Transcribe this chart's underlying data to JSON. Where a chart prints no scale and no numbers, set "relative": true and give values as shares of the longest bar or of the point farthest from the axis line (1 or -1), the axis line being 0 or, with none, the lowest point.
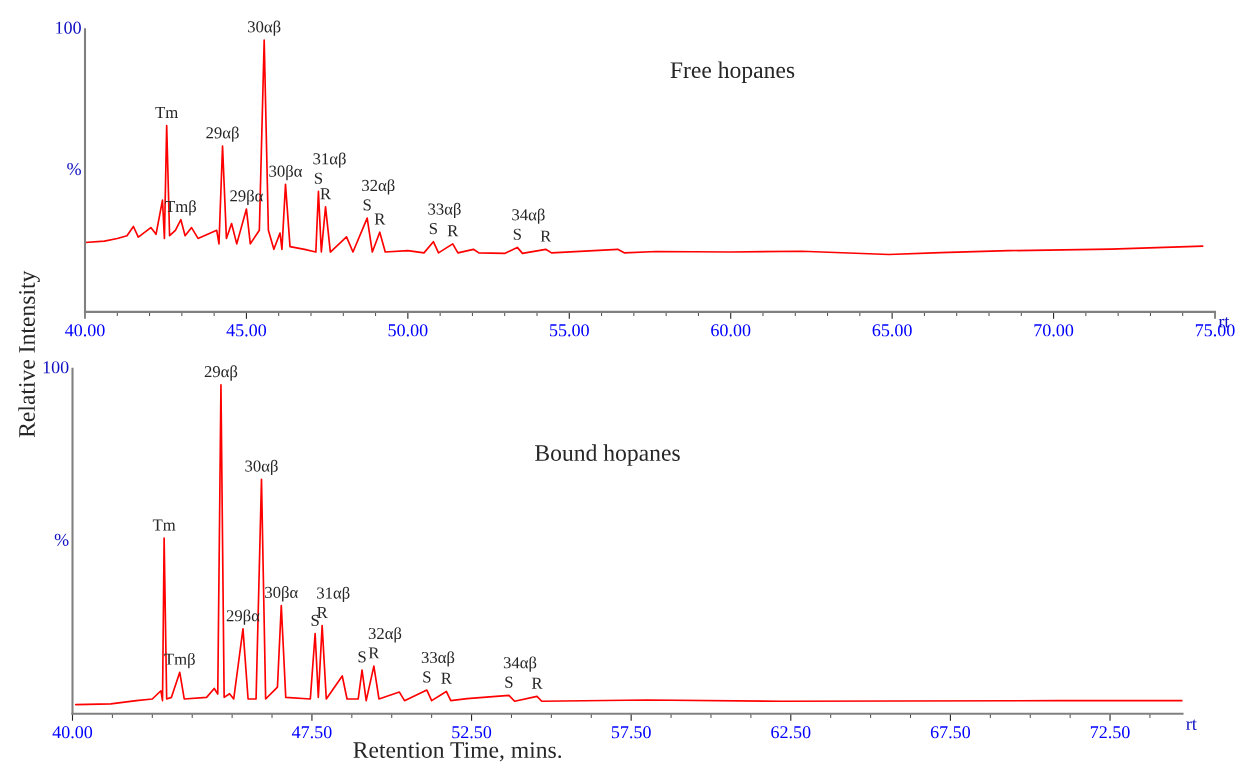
{
  "chart_data": [
    {
      "type": "line",
      "title": "Free hopanes",
      "ylabel": "Relative Intensity",
      "relative": true,
      "x": [
        40.0,
        40.6,
        41.0,
        41.3,
        41.5,
        41.65,
        42.04,
        42.2,
        42.4,
        42.46,
        42.53,
        42.62,
        42.8,
        42.97,
        43.1,
        43.3,
        43.5,
        44.08,
        44.15,
        44.26,
        44.38,
        44.54,
        44.7,
        45.0,
        45.12,
        45.4,
        45.55,
        45.68,
        45.85,
        46.04,
        46.1,
        46.21,
        46.35,
        46.8,
        47.15,
        47.23,
        47.32,
        47.45,
        47.6,
        48.1,
        48.3,
        48.74,
        48.9,
        49.13,
        49.3,
        50.0,
        50.5,
        50.79,
        50.95,
        51.39,
        51.55,
        52.03,
        52.2,
        53.0,
        53.39,
        53.55,
        54.27,
        54.45,
        56.5,
        56.7,
        57.7,
        60.0,
        62.2,
        64.9,
        66.5,
        68.6,
        71.77,
        74.62
      ],
      "series": [
        {
          "color": "#ff0000",
          "values": [
            0.255,
            0.26,
            0.27,
            0.28,
            0.314,
            0.275,
            0.31,
            0.285,
            0.411,
            0.27,
            0.685,
            0.28,
            0.3,
            0.339,
            0.28,
            0.31,
            0.27,
            0.3,
            0.25,
            0.61,
            0.27,
            0.325,
            0.25,
            0.378,
            0.25,
            0.3,
            1.0,
            0.3,
            0.23,
            0.29,
            0.23,
            0.469,
            0.24,
            0.23,
            0.22,
            0.443,
            0.22,
            0.386,
            0.22,
            0.276,
            0.22,
            0.345,
            0.22,
            0.293,
            0.22,
            0.225,
            0.217,
            0.258,
            0.217,
            0.25,
            0.217,
            0.23,
            0.217,
            0.215,
            0.237,
            0.215,
            0.23,
            0.217,
            0.23,
            0.217,
            0.222,
            0.22,
            0.223,
            0.211,
            0.218,
            0.225,
            0.231,
            0.242
          ]
        }
      ],
      "xlim": [
        40,
        75
      ],
      "xticks": [
        {
          "value": 40,
          "label": "40.00"
        },
        {
          "value": 45,
          "label": "45.00"
        },
        {
          "value": 50,
          "label": "50.00"
        },
        {
          "value": 55,
          "label": "55.00"
        },
        {
          "value": 60,
          "label": "60.00"
        },
        {
          "value": 65,
          "label": "65.00"
        },
        {
          "value": 70,
          "label": "70.00"
        },
        {
          "value": 75,
          "label": "75.00"
        }
      ],
      "annotations": [
        "100",
        "%",
        "rt",
        {
          "text": "Tm",
          "x": 42.53,
          "y": 0.685
        },
        {
          "text": "Tmβ",
          "x": 42.97,
          "y": 0.339
        },
        {
          "text": "29αβ",
          "x": 44.26,
          "y": 0.61
        },
        {
          "text": "29βα",
          "x": 45.0,
          "y": 0.378
        },
        {
          "text": "30αβ",
          "x": 45.55,
          "y": 1.0
        },
        {
          "text": "30βα",
          "x": 46.21,
          "y": 0.469
        },
        {
          "text": "S",
          "x": 47.23,
          "y": 0.443
        },
        {
          "text": "R",
          "x": 47.45,
          "y": 0.386
        },
        {
          "text": "31αβ",
          "x": 47.23,
          "y": 0.443
        },
        {
          "text": "S",
          "x": 48.74,
          "y": 0.345
        },
        {
          "text": "R",
          "x": 49.13,
          "y": 0.293
        },
        {
          "text": "32αβ",
          "x": 48.74,
          "y": 0.345
        },
        {
          "text": "S",
          "x": 50.79,
          "y": 0.258
        },
        {
          "text": "R",
          "x": 51.39,
          "y": 0.25
        },
        {
          "text": "33αβ",
          "x": 50.79,
          "y": 0.258
        },
        {
          "text": "S",
          "x": 53.39,
          "y": 0.237
        },
        {
          "text": "R",
          "x": 54.27,
          "y": 0.23
        },
        {
          "text": "34αβ",
          "x": 53.39,
          "y": 0.237
        }
      ]
    },
    {
      "type": "line",
      "title": "Bound hopanes",
      "xlabel": "Retention Time, mins.",
      "relative": true,
      "x": [
        40.1,
        41.2,
        42.0,
        42.5,
        42.77,
        42.82,
        42.87,
        42.95,
        43.1,
        43.36,
        43.5,
        44.2,
        44.44,
        44.55,
        44.65,
        44.75,
        44.92,
        45.05,
        45.34,
        45.5,
        45.75,
        45.92,
        46.05,
        46.42,
        46.54,
        46.68,
        47.45,
        47.6,
        47.7,
        47.82,
        47.95,
        48.45,
        48.6,
        48.95,
        49.07,
        49.2,
        49.44,
        49.6,
        50.24,
        50.4,
        51.1,
        51.25,
        51.71,
        51.85,
        52.36,
        53.67,
        53.85,
        54.55,
        54.7,
        58.0,
        62.2,
        70.94,
        74.77
      ],
      "series": [
        {
          "color": "#ff0000",
          "values": [
            0.028,
            0.03,
            0.04,
            0.045,
            0.07,
            0.04,
            0.534,
            0.045,
            0.05,
            0.126,
            0.045,
            0.05,
            0.077,
            0.06,
            1.0,
            0.05,
            0.061,
            0.045,
            0.258,
            0.045,
            0.045,
            0.713,
            0.045,
            0.081,
            0.329,
            0.05,
            0.045,
            0.244,
            0.05,
            0.268,
            0.045,
            0.115,
            0.045,
            0.045,
            0.133,
            0.04,
            0.145,
            0.045,
            0.066,
            0.04,
            0.072,
            0.04,
            0.068,
            0.04,
            0.046,
            0.056,
            0.038,
            0.053,
            0.038,
            0.042,
            0.038,
            0.04,
            0.04
          ]
        }
      ],
      "xlim": [
        40,
        74.77
      ],
      "xticks": [
        {
          "value": 40,
          "label": "40.00"
        },
        {
          "value": 47.5,
          "label": "47.50"
        },
        {
          "value": 52.5,
          "label": "52.50"
        },
        {
          "value": 57.5,
          "label": "57.50"
        },
        {
          "value": 62.5,
          "label": "62.50"
        },
        {
          "value": 67.5,
          "label": "67.50"
        },
        {
          "value": 72.5,
          "label": "72.50"
        }
      ],
      "annotations": [
        "100",
        "%",
        "rt",
        {
          "text": "Tm",
          "x": 42.87,
          "y": 0.534
        },
        {
          "text": "Tmβ",
          "x": 43.36,
          "y": 0.126
        },
        {
          "text": "29αβ",
          "x": 44.65,
          "y": 1.0
        },
        {
          "text": "29βα",
          "x": 45.34,
          "y": 0.258
        },
        {
          "text": "30αβ",
          "x": 45.92,
          "y": 0.713
        },
        {
          "text": "30βα",
          "x": 46.54,
          "y": 0.329
        },
        {
          "text": "S",
          "x": 47.6,
          "y": 0.244
        },
        {
          "text": "R",
          "x": 47.82,
          "y": 0.268
        },
        {
          "text": "31αβ",
          "x": 47.82,
          "y": 0.268
        },
        {
          "text": "S",
          "x": 49.07,
          "y": 0.133
        },
        {
          "text": "R",
          "x": 49.44,
          "y": 0.145
        },
        {
          "text": "32αβ",
          "x": 49.44,
          "y": 0.145
        },
        {
          "text": "S",
          "x": 51.1,
          "y": 0.072
        },
        {
          "text": "R",
          "x": 51.71,
          "y": 0.068
        },
        {
          "text": "33αβ",
          "x": 51.1,
          "y": 0.072
        },
        {
          "text": "S",
          "x": 53.67,
          "y": 0.056
        },
        {
          "text": "R",
          "x": 54.55,
          "y": 0.053
        },
        {
          "text": "34αβ",
          "x": 53.67,
          "y": 0.056
        }
      ]
    }
  ]
}
